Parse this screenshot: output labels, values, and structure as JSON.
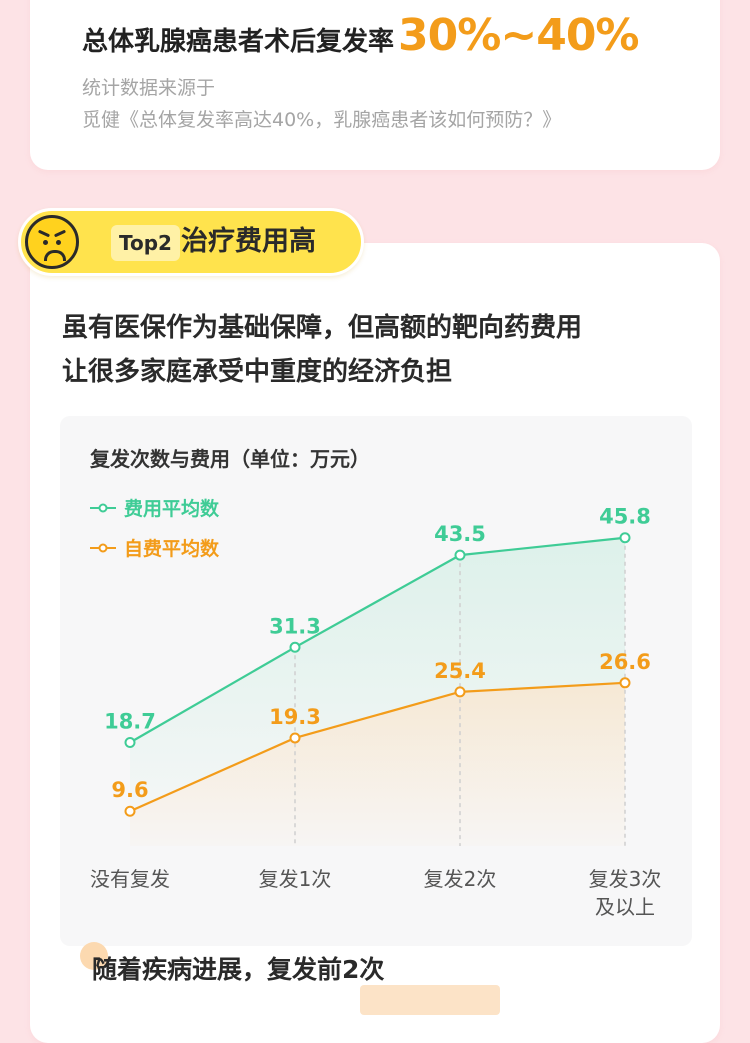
{
  "top_card": {
    "headline": "总体乳腺癌患者术后复发率",
    "highlight": "30%~40%",
    "source_line1": "统计数据来源于",
    "source_line2": "觅健《总体复发率高达40%，乳腺癌患者该如何预防？》"
  },
  "badge": {
    "face_icon": "angry-face-icon",
    "tag": "Top2",
    "title": "治疗费用高"
  },
  "subhead": {
    "line1": "虽有医保作为基础保障，但高额的靶向药费用",
    "line2": "让很多家庭承受中重度的经济负担"
  },
  "colors": {
    "series_total": "#3fcc96",
    "series_self": "#f39c1a",
    "highlight": "#f39c1a"
  },
  "chart_data": {
    "type": "line",
    "title": "复发次数与费用（单位：万元）",
    "categories": [
      "没有复发",
      "复发1次",
      "复发2次",
      "复发3次\n及以上"
    ],
    "series": [
      {
        "name": "费用平均数",
        "values": [
          18.7,
          31.3,
          43.5,
          45.8
        ],
        "color": "#3fcc96"
      },
      {
        "name": "自费平均数",
        "values": [
          9.6,
          19.3,
          25.4,
          26.6
        ],
        "color": "#f39c1a"
      }
    ],
    "ylim": [
      5,
      50
    ],
    "legend": "top-left",
    "grid": false
  },
  "footer": {
    "text": "随着疾病进展，复发前2次"
  }
}
